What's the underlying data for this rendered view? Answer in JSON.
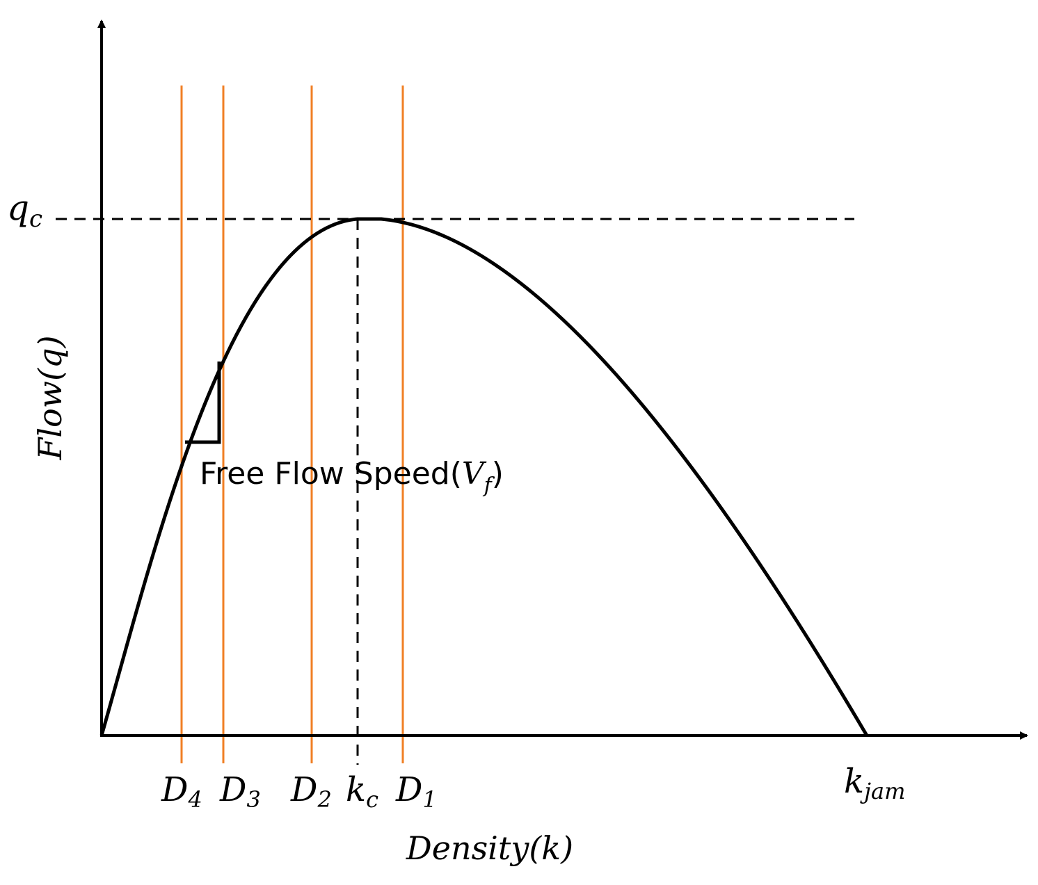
{
  "colors": {
    "axis": "#000000",
    "curve": "#000000",
    "dashed": "#000000",
    "density_line": "#f07f24",
    "background": "#ffffff"
  },
  "labels": {
    "q_c": {
      "base": "q",
      "sub": "c"
    },
    "k_jam": {
      "base": "k",
      "sub": "jam"
    },
    "k_c": {
      "base": "k",
      "sub": "c"
    },
    "y_axis": "Flow(q)",
    "x_axis": "Density(k)",
    "free_flow": {
      "text": "Free Flow Speed(",
      "var": "V",
      "sub": "f",
      "close": ")"
    }
  },
  "density_lines": [
    {
      "base": "D",
      "sub": "4"
    },
    {
      "base": "D",
      "sub": "3"
    },
    {
      "base": "D",
      "sub": "2"
    },
    {
      "base": "D",
      "sub": "1"
    }
  ]
}
